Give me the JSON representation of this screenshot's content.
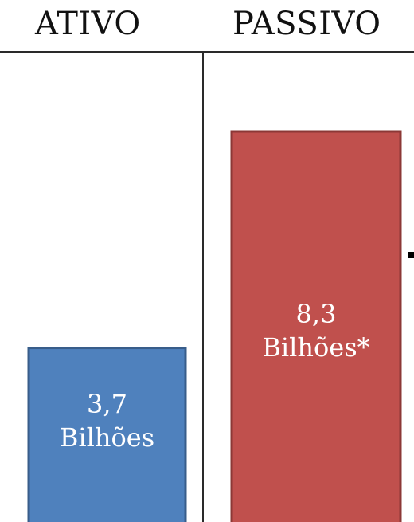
{
  "chart_data": {
    "type": "bar",
    "categories": [
      "ATIVO",
      "PASSIVO"
    ],
    "values": [
      3.7,
      8.3
    ],
    "unit": "Bilhões",
    "data_labels": [
      {
        "value_text": "3,7",
        "unit_text": "Bilhões"
      },
      {
        "value_text": "8,3",
        "unit_text": "Bilhões*"
      }
    ],
    "colors": {
      "ativo_fill": "#4f81bd",
      "ativo_border": "#385d8a",
      "passivo_fill": "#c0504d",
      "passivo_border": "#8c3836"
    }
  }
}
